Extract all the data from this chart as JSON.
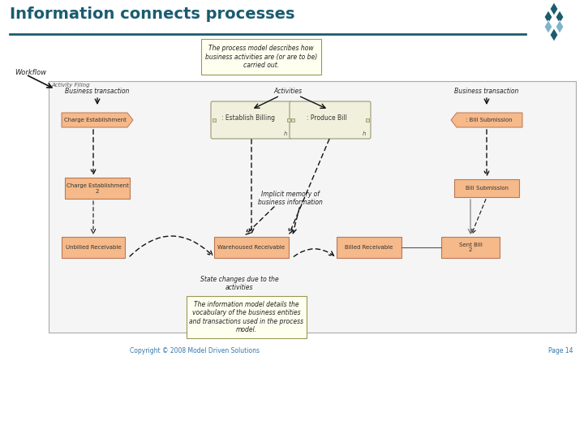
{
  "title": "Information connects processes",
  "title_color": "#1a5c6e",
  "title_fontsize": 14,
  "bg_color": "#ffffff",
  "line_color": "#1a5c6e",
  "copyright_text": "Copyright © 2008 Model Driven Solutions",
  "page_text": "Page 14",
  "yellow_box1_text": "The process model describes how\nbusiness activities are (or are to be)\ncarried out.",
  "yellow_box2_text": "The information model details the\nvocabulary of the business entities\nand transactions used in the process\nmodel.",
  "workflow_label": "Workflow",
  "activity_label": "Activity Filing",
  "biz_tx_left": "Business transaction",
  "activities_center": "Activities",
  "biz_tx_right": "Business transaction",
  "state_changes_text": "State changes due to the\nactivities",
  "implicit_memory_text": "Implicit memory of\nbusiness information",
  "box_establish": ": Establish Billing",
  "box_produce": ": Produce Bill",
  "box_bill_sub_top": ": Bill Submission",
  "box_change_est": "Charge Establishment",
  "box_charge_est2": "Charge Establishment\n2",
  "box_unbilled": "Unbilled Receivable",
  "box_warehoused": "Warehoused Receivable",
  "box_billed": "Billed Receivable",
  "box_sent_bill": "Sent Bill\n2",
  "box_bill_sub_bottom": "Bill Submission",
  "orange_color": "#f5b98a",
  "yellow_bg": "#fffff0",
  "activity_bg": "#f0f0dc",
  "outer_box_color": "#aaaaaa",
  "arrow_color": "#111111",
  "logo_colors": [
    "#1a5c6e",
    "#1a5c6e",
    "#1a5c6e",
    "#7fb3c8",
    "#7fb3c8",
    "#1a5c6e"
  ]
}
